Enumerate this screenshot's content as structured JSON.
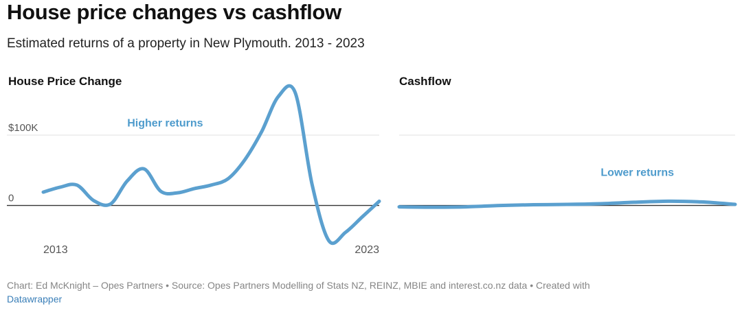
{
  "title": "House price changes vs cashflow",
  "subtitle": "Estimated returns of a property in New Plymouth. 2013 - 2023",
  "footer": {
    "text": "Chart: Ed McKnight – Opes Partners • Source: Opes Partners Modelling of Stats NZ, REINZ, MBIE and interest.co.nz data • Created with",
    "link_text": "Datawrapper"
  },
  "colors": {
    "line": "#5ba0cf",
    "annotation": "#4e9bcc",
    "grid": "#e2e2e2",
    "baseline": "#333333"
  },
  "chart_data": [
    {
      "type": "line",
      "title": "House Price Change",
      "x_tick_labels": [
        "2013",
        "2023"
      ],
      "y_tick_labels": [
        {
          "value": 100000,
          "label": "$100K"
        },
        {
          "value": 0,
          "label": "0"
        }
      ],
      "ylim": [
        -55000,
        175000
      ],
      "annotation": {
        "text": "Higher returns",
        "x": 2015.5,
        "y": 112000
      },
      "series": [
        {
          "x": [
            2013.0,
            2013.5,
            2014.0,
            2014.5,
            2015.0,
            2015.5,
            2016.0,
            2016.5,
            2017.0,
            2017.5,
            2018.0,
            2018.5,
            2019.0,
            2019.5,
            2020.0,
            2020.5,
            2021.0,
            2021.5,
            2022.0,
            2022.5,
            2023.0
          ],
          "y": [
            19000,
            26000,
            29000,
            7000,
            2000,
            35000,
            52000,
            20000,
            18000,
            24000,
            29000,
            38000,
            65000,
            105000,
            155000,
            160000,
            30000,
            -50000,
            -38000,
            -16000,
            6000
          ]
        }
      ]
    },
    {
      "type": "line",
      "title": "Cashflow",
      "ylim": [
        -55000,
        175000
      ],
      "annotation": {
        "text": "Lower returns",
        "x": 2019.0,
        "y": 42000
      },
      "series": [
        {
          "x": [
            2013.0,
            2014.0,
            2015.0,
            2016.0,
            2017.0,
            2018.0,
            2019.0,
            2020.0,
            2021.0,
            2022.0,
            2023.0
          ],
          "y": [
            -2000,
            -2500,
            -2000,
            0,
            1000,
            1500,
            2500,
            4500,
            6000,
            5000,
            1500
          ]
        }
      ]
    }
  ]
}
